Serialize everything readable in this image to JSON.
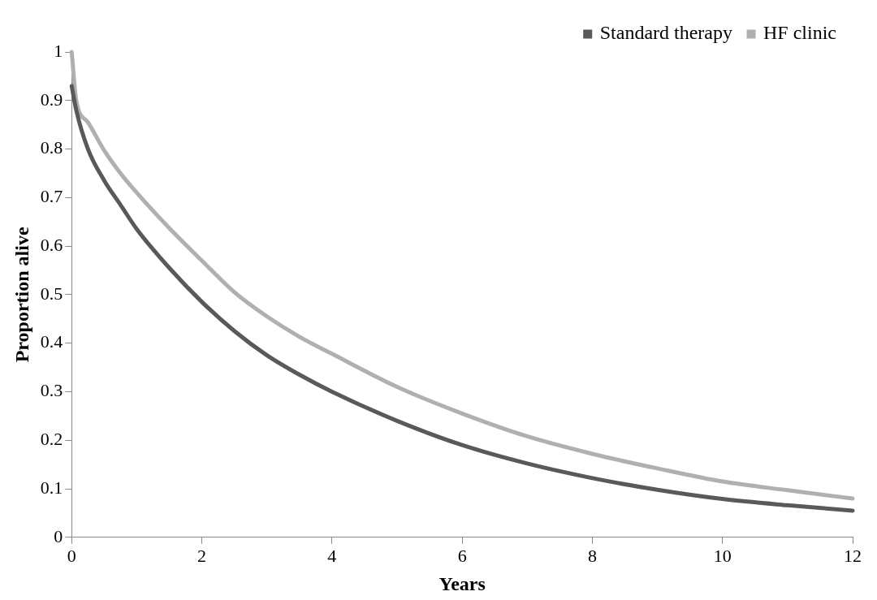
{
  "chart_data": {
    "type": "line",
    "xlabel": "Years",
    "ylabel": "Proportion alive",
    "xlim": [
      0,
      12
    ],
    "xticks": [
      0,
      2,
      4,
      6,
      8,
      10,
      12
    ],
    "ylim": [
      0,
      1
    ],
    "yticks": [
      0,
      0.1,
      0.2,
      0.3,
      0.4,
      0.5,
      0.6,
      0.7,
      0.8,
      0.9,
      1
    ],
    "grid": false,
    "legend": "top right",
    "marker": "none",
    "line_style": "solid",
    "x": [
      0,
      0.07,
      0.25,
      0.5,
      0.75,
      1,
      1.5,
      2,
      2.5,
      3,
      3.5,
      4,
      5,
      6,
      7,
      8,
      9,
      10,
      11,
      12
    ],
    "series": [
      {
        "name": "Standard therapy",
        "color": "#595959",
        "values": [
          0.93,
          0.88,
          0.8,
          0.735,
          0.685,
          0.635,
          0.555,
          0.485,
          0.425,
          0.375,
          0.335,
          0.3,
          0.24,
          0.19,
          0.152,
          0.122,
          0.098,
          0.079,
          0.066,
          0.055
        ]
      },
      {
        "name": "HF clinic",
        "color": "#b0b0b0",
        "values": [
          1,
          0.9,
          0.855,
          0.797,
          0.75,
          0.71,
          0.637,
          0.57,
          0.505,
          0.455,
          0.413,
          0.378,
          0.31,
          0.255,
          0.208,
          0.172,
          0.142,
          0.115,
          0.097,
          0.08
        ]
      }
    ]
  }
}
